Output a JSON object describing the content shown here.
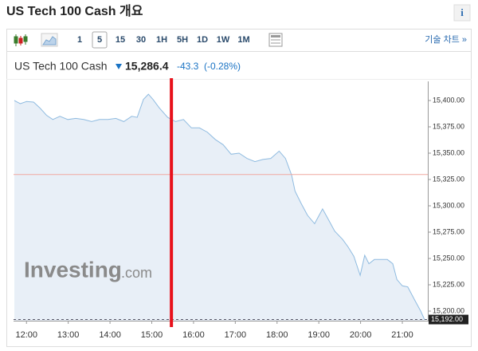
{
  "header": {
    "title": "US Tech 100 Cash 개요",
    "info": "i"
  },
  "toolbar": {
    "intervals": [
      "1",
      "5",
      "15",
      "30",
      "1H",
      "5H",
      "1D",
      "1W",
      "1M"
    ],
    "selected": "5",
    "link": "기술 차트 »"
  },
  "quote": {
    "name": "US Tech 100 Cash",
    "price": "15,286.4",
    "change": "-43.3",
    "change_pct": "(-0.28%)"
  },
  "watermark": {
    "brand": "Investing",
    "suffix": ".com"
  },
  "chart_data": {
    "type": "area",
    "x": [
      11.71,
      11.85,
      12,
      12.17,
      12.32,
      12.48,
      12.63,
      12.8,
      12.99,
      13.18,
      13.37,
      13.56,
      13.75,
      13.95,
      14.14,
      14.33,
      14.52,
      14.65,
      14.8,
      14.92,
      15.03,
      15.18,
      15.38,
      15.57,
      15.76,
      15.95,
      16.14,
      16.33,
      16.52,
      16.71,
      16.9,
      17.09,
      17.28,
      17.47,
      17.66,
      17.85,
      18.05,
      18.2,
      18.35,
      18.43,
      18.58,
      18.73,
      18.9,
      19.09,
      19.23,
      19.38,
      19.57,
      19.7,
      19.84,
      19.99,
      20.1,
      20.2,
      20.33,
      20.49,
      20.64,
      20.77,
      20.87,
      21,
      21.13,
      21.29,
      21.44,
      21.53
    ],
    "values": [
      15400,
      15397,
      15399,
      15398.5,
      15393,
      15386,
      15382,
      15385,
      15382,
      15383,
      15382,
      15380,
      15382,
      15382,
      15383,
      15380,
      15385,
      15384,
      15401,
      15406,
      15401,
      15393,
      15384,
      15380,
      15382,
      15374,
      15374,
      15370,
      15363,
      15358,
      15349,
      15350,
      15345,
      15342,
      15344,
      15345,
      15352,
      15345,
      15329,
      15314,
      15302,
      15291,
      15283,
      15297,
      15287,
      15276,
      15268,
      15261,
      15252,
      15234,
      15253,
      15245,
      15249,
      15249,
      15249,
      15245,
      15230,
      15224,
      15223,
      15211,
      15200,
      15192
    ],
    "color": "#8fbbe0",
    "fill_color": "#e8eff7",
    "xlim": [
      11.69,
      21.61
    ],
    "ylim": [
      15190.9,
      15410.6
    ],
    "xticks": [
      {
        "value": 12,
        "label": "12:00"
      },
      {
        "value": 13,
        "label": "13:00"
      },
      {
        "value": 14,
        "label": "14:00"
      },
      {
        "value": 15,
        "label": "15:00"
      },
      {
        "value": 16,
        "label": "16:00"
      },
      {
        "value": 17,
        "label": "17:00"
      },
      {
        "value": 18,
        "label": "18:00"
      },
      {
        "value": 19,
        "label": "19:00"
      },
      {
        "value": 20,
        "label": "20:00"
      },
      {
        "value": 21,
        "label": "21:00"
      }
    ],
    "yticks": [
      {
        "value": 15200,
        "label": "15,200.00"
      },
      {
        "value": 15225,
        "label": "15,225.00"
      },
      {
        "value": 15250,
        "label": "15,250.00"
      },
      {
        "value": 15275,
        "label": "15,275.00"
      },
      {
        "value": 15300,
        "label": "15,300.00"
      },
      {
        "value": 15325,
        "label": "15,325.00"
      },
      {
        "value": 15350,
        "label": "15,350.00"
      },
      {
        "value": 15375,
        "label": "15,375.00"
      },
      {
        "value": 15400,
        "label": "15,400.00"
      }
    ],
    "reference_line": 15329.7,
    "marker_x": 15.47,
    "last_value": {
      "value": 15192,
      "label": "15,192.00"
    }
  }
}
